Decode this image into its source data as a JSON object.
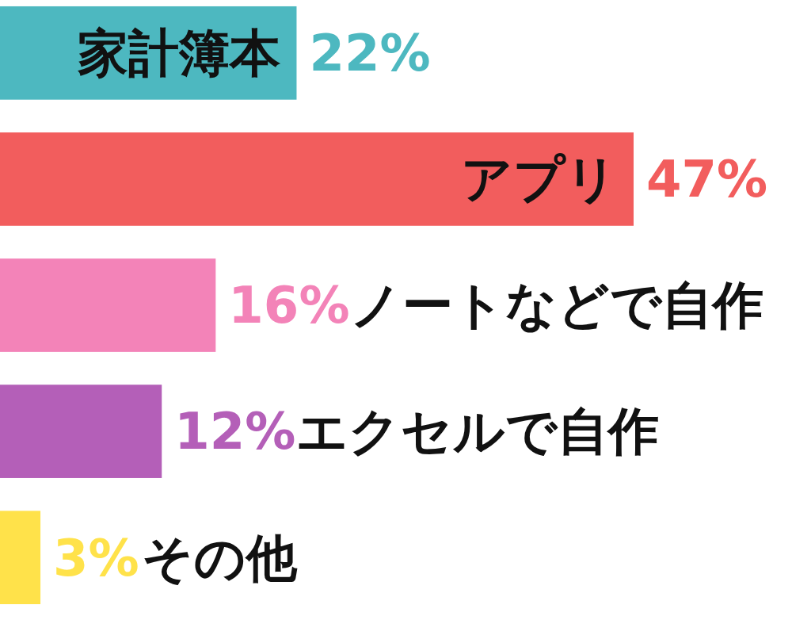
{
  "chart_data": {
    "type": "bar",
    "orientation": "horizontal",
    "categories": [
      "家計簿本",
      "アプリ",
      "ノートなどで自作",
      "エクセルで自作",
      "その他"
    ],
    "values": [
      22,
      47,
      16,
      12,
      3
    ],
    "colors": [
      "#4db8c0",
      "#f25d5d",
      "#f383b8",
      "#b45fb8",
      "#ffe24a"
    ],
    "value_labels": [
      "22%",
      "47%",
      "16%",
      "12%",
      "3%"
    ],
    "xlim": [
      0,
      47
    ]
  }
}
